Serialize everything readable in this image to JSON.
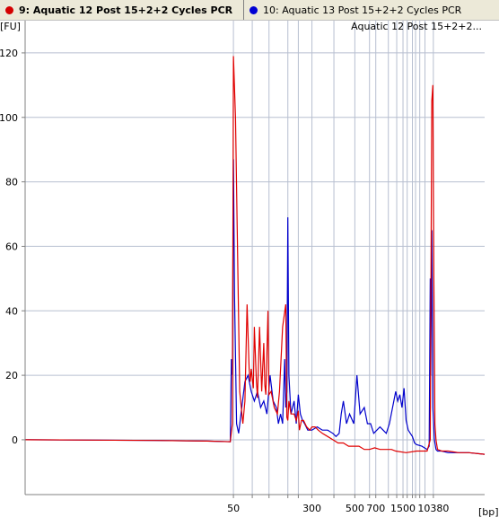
{
  "tabs": [
    {
      "label": "9: Aquatic 12 Post 15+2+2 Cycles PCR",
      "color": "#d40000",
      "active": true
    },
    {
      "label": "10: Aquatic 13 Post 15+2+2 Cycles PCR",
      "color": "#0000d4",
      "active": false
    }
  ],
  "colors": {
    "red_series": "#e00000",
    "blue_series": "#0000cc",
    "grid": "#b7bfd0",
    "ladder_line": "#b7bfd0"
  },
  "chart_data": {
    "type": "line",
    "legend": "Aquatic 12 Post 15+2+2...",
    "ylabel": "[FU]",
    "xlabel": "[bp]",
    "ylim": [
      -17,
      130
    ],
    "y_ticks": [
      0,
      20,
      40,
      60,
      80,
      100,
      120
    ],
    "x_ticks": [
      "50",
      "300",
      "500",
      "700",
      "1500",
      "10380"
    ],
    "time_range": [
      22.6,
      66.5
    ],
    "ladder_times": [
      {
        "t": 42.5,
        "bp": "50"
      },
      {
        "t": 44.3,
        "bp": ""
      },
      {
        "t": 45.9,
        "bp": ""
      },
      {
        "t": 47.7,
        "bp": ""
      },
      {
        "t": 48.7,
        "bp": ""
      },
      {
        "t": 50.0,
        "bp": "300"
      },
      {
        "t": 52.1,
        "bp": ""
      },
      {
        "t": 54.1,
        "bp": "500"
      },
      {
        "t": 55.5,
        "bp": ""
      },
      {
        "t": 56.1,
        "bp": "700"
      },
      {
        "t": 57.3,
        "bp": ""
      },
      {
        "t": 58.1,
        "bp": ""
      },
      {
        "t": 58.7,
        "bp": "1500"
      },
      {
        "t": 59.1,
        "bp": ""
      },
      {
        "t": 59.6,
        "bp": ""
      },
      {
        "t": 59.9,
        "bp": ""
      },
      {
        "t": 60.3,
        "bp": ""
      },
      {
        "t": 60.8,
        "bp": ""
      },
      {
        "t": 61.6,
        "bp": "10380"
      }
    ],
    "series": [
      {
        "name": "9: Aquatic 12 Post 15+2+2 Cycles PCR",
        "color": "#e00000",
        "t": [
          22.6,
          35,
          40,
          42.2,
          42.4,
          42.5,
          42.7,
          43.1,
          43.4,
          43.6,
          43.8,
          44.0,
          44.1,
          44.2,
          44.4,
          44.5,
          44.7,
          44.8,
          45.0,
          45.2,
          45.4,
          45.5,
          45.6,
          45.8,
          45.9,
          46.1,
          46.4,
          46.7,
          46.9,
          47.2,
          47.5,
          47.6,
          47.7,
          47.8,
          48.0,
          48.3,
          48.5,
          48.7,
          48.8,
          49.0,
          49.2,
          49.5,
          49.8,
          50.0,
          50.3,
          50.6,
          51.0,
          51.5,
          52.0,
          52.5,
          53.0,
          53.5,
          54.0,
          54.5,
          55.0,
          55.5,
          56.0,
          56.5,
          57.0,
          57.3,
          57.6,
          58.0,
          59.0,
          60.0,
          61.0,
          61.3,
          61.45,
          61.55,
          61.65,
          61.75,
          61.85,
          62.0,
          62.4,
          63.0,
          64.0,
          65.0,
          66.5
        ],
        "y": [
          0,
          -0.2,
          -0.4,
          -0.6,
          5,
          119,
          100,
          15,
          5,
          12,
          42,
          22,
          18,
          22,
          16,
          35,
          18,
          13,
          35,
          15,
          30,
          17,
          14,
          40,
          14,
          15,
          10,
          8,
          15,
          35,
          42,
          7,
          6,
          12,
          8,
          8,
          6,
          9,
          3,
          6,
          6,
          4,
          3,
          4,
          4,
          3,
          2,
          1,
          0,
          -1,
          -1,
          -2,
          -2,
          -2,
          -3,
          -3,
          -2.5,
          -3,
          -3,
          -3,
          -3,
          -3.5,
          -4,
          -3.5,
          -3.5,
          0,
          105,
          110,
          50,
          5,
          0,
          -3,
          -3.5,
          -3.5,
          -4,
          -4,
          -4.5
        ]
      },
      {
        "name": "10: Aquatic 13 Post 15+2+2 Cycles PCR",
        "color": "#0000cc",
        "t": [
          22.6,
          35,
          40,
          42.2,
          42.3,
          42.4,
          42.5,
          42.6,
          42.8,
          43.0,
          43.3,
          43.6,
          43.9,
          44.2,
          44.5,
          44.8,
          45.1,
          45.4,
          45.7,
          46.0,
          46.3,
          46.6,
          46.8,
          47.0,
          47.2,
          47.4,
          47.5,
          47.6,
          47.7,
          47.8,
          48.0,
          48.3,
          48.5,
          48.7,
          48.9,
          49.1,
          49.3,
          49.6,
          50.0,
          50.5,
          51.0,
          51.5,
          52.0,
          52.3,
          52.6,
          52.8,
          53.0,
          53.3,
          53.6,
          54.0,
          54.3,
          54.6,
          55.0,
          55.3,
          55.6,
          55.9,
          56.2,
          56.5,
          56.8,
          57.1,
          57.4,
          57.7,
          58.0,
          58.2,
          58.4,
          58.6,
          58.8,
          59.0,
          59.2,
          59.4,
          59.6,
          59.8,
          60.0,
          60.5,
          61.0,
          61.2,
          61.3,
          61.35,
          61.45,
          61.55,
          61.7,
          61.85,
          62.0,
          62.4,
          63.0,
          64.0,
          65.0,
          66.5
        ],
        "y": [
          0,
          -0.2,
          -0.4,
          -0.6,
          25,
          20,
          87,
          45,
          5,
          2,
          10,
          18,
          20,
          15,
          12,
          15,
          10,
          12,
          8,
          20,
          12,
          10,
          5,
          8,
          5,
          25,
          10,
          15,
          69,
          20,
          8,
          12,
          5,
          14,
          8,
          6,
          5,
          3,
          3,
          4,
          3,
          3,
          2,
          1,
          2,
          8,
          12,
          5,
          8,
          5,
          20,
          8,
          10,
          5,
          5,
          2,
          3,
          4,
          3,
          2,
          5,
          10,
          15,
          12,
          14,
          10,
          16,
          6,
          3,
          2,
          1,
          -1,
          -1.5,
          -2,
          -3,
          -2,
          50,
          20,
          65,
          10,
          0,
          -3,
          -3.5,
          -3.5,
          -4,
          -4,
          -4,
          -4.5
        ]
      }
    ]
  }
}
